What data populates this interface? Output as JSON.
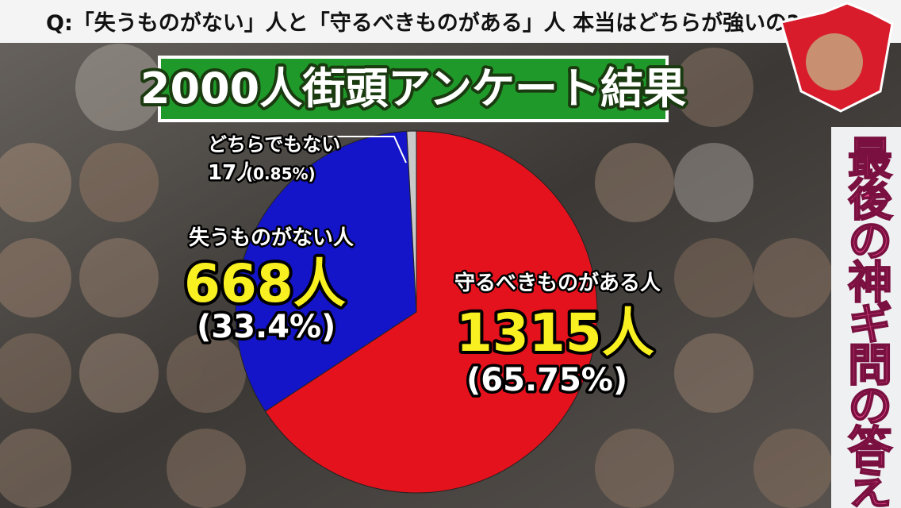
{
  "header": {
    "question": "Q:「失うものがない」人と「守るべきものがある」人 本当はどちらが強いの?"
  },
  "side_caption": "最後の神ギ問の答え",
  "chart_data": {
    "type": "pie",
    "title": "2000人街頭アンケート結果",
    "categories": [
      "守るべきものがある人",
      "失うものがない人",
      "どちらでもない"
    ],
    "values": [
      1315,
      668,
      17
    ],
    "value_labels": [
      "1315人",
      "668人",
      "17人"
    ],
    "percent_labels": [
      "(65.75%)",
      "(33.4%)",
      "(0.85%)"
    ],
    "colors": [
      "#e3121c",
      "#1414c8",
      "#c9c9c9"
    ]
  }
}
